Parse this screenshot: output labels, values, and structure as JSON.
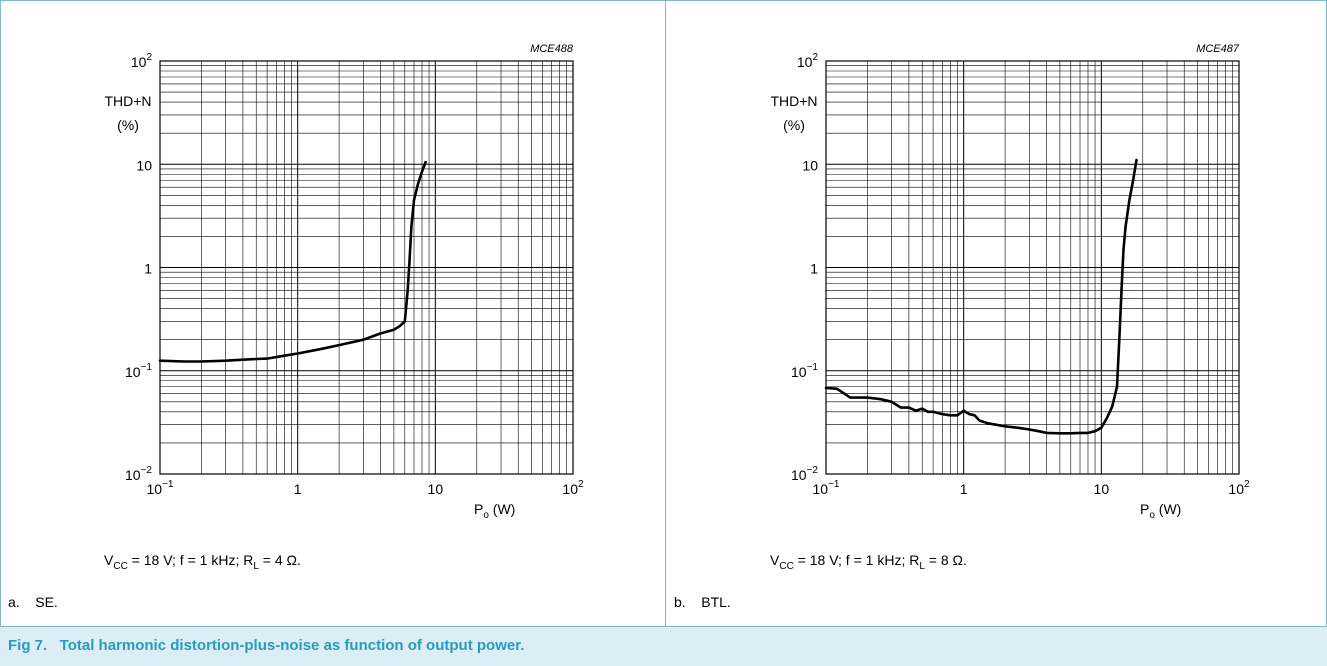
{
  "caption": "Fig 7.   Total harmonic distortion-plus-noise as function of output power.",
  "chart_data": [
    {
      "type": "line",
      "code": "MCE488",
      "ylabel": "THD+N",
      "ylabel_unit": "(%)",
      "xlabel": "P",
      "xlabel_sub": "o",
      "xlabel_unit": " (W)",
      "x_scale": "log",
      "y_scale": "log",
      "xlim": [
        0.1,
        100
      ],
      "ylim": [
        0.01,
        100
      ],
      "x_ticks": [
        {
          "base": "10",
          "exp": "−1"
        },
        {
          "base": "1",
          "exp": ""
        },
        {
          "base": "10",
          "exp": ""
        },
        {
          "base": "10",
          "exp": "2"
        }
      ],
      "y_ticks": [
        {
          "base": "10",
          "exp": "−2"
        },
        {
          "base": "10",
          "exp": "−1"
        },
        {
          "base": "1",
          "exp": ""
        },
        {
          "base": "10",
          "exp": ""
        },
        {
          "base": "10",
          "exp": "2"
        }
      ],
      "grid": true,
      "series": [
        {
          "x": [
            0.1,
            0.15,
            0.2,
            0.3,
            0.4,
            0.5,
            0.6,
            0.8,
            1.0,
            1.5,
            2.0,
            3.0,
            4.0,
            5.0,
            5.5,
            6.0,
            6.3,
            6.5,
            6.7,
            7.0,
            7.5,
            8.0,
            8.5
          ],
          "y": [
            0.125,
            0.123,
            0.123,
            0.125,
            0.128,
            0.13,
            0.131,
            0.14,
            0.147,
            0.163,
            0.177,
            0.2,
            0.23,
            0.25,
            0.27,
            0.3,
            0.6,
            1.2,
            2.5,
            4.5,
            6.5,
            8.5,
            10.5
          ]
        }
      ],
      "conditions": {
        "vcc_label": "V",
        "vcc_sub": "CC",
        "vcc_rest": " = 18 V; f = 1 kHz; R",
        "rl_sub": "L",
        "rl_rest": " = 4 Ω."
      },
      "sub_label": "a.    SE."
    },
    {
      "type": "line",
      "code": "MCE487",
      "ylabel": "THD+N",
      "ylabel_unit": "(%)",
      "xlabel": "P",
      "xlabel_sub": "o",
      "xlabel_unit": " (W)",
      "x_scale": "log",
      "y_scale": "log",
      "xlim": [
        0.1,
        100
      ],
      "ylim": [
        0.01,
        100
      ],
      "x_ticks": [
        {
          "base": "10",
          "exp": "−1"
        },
        {
          "base": "1",
          "exp": ""
        },
        {
          "base": "10",
          "exp": ""
        },
        {
          "base": "10",
          "exp": "2"
        }
      ],
      "y_ticks": [
        {
          "base": "10",
          "exp": "−2"
        },
        {
          "base": "10",
          "exp": "−1"
        },
        {
          "base": "1",
          "exp": ""
        },
        {
          "base": "10",
          "exp": ""
        },
        {
          "base": "10",
          "exp": "2"
        }
      ],
      "grid": true,
      "series": [
        {
          "x": [
            0.1,
            0.12,
            0.15,
            0.2,
            0.25,
            0.3,
            0.35,
            0.4,
            0.45,
            0.5,
            0.55,
            0.6,
            0.7,
            0.8,
            0.9,
            1.0,
            1.1,
            1.2,
            1.3,
            1.5,
            2.0,
            2.5,
            3.0,
            3.5,
            4.0,
            5.0,
            6.0,
            7.0,
            8.0,
            9.0,
            10.0,
            11.0,
            12.0,
            13.0,
            13.5,
            14.0,
            14.5,
            15.0,
            16.0,
            17.0,
            18.0
          ],
          "y": [
            0.068,
            0.067,
            0.055,
            0.055,
            0.053,
            0.05,
            0.044,
            0.044,
            0.041,
            0.043,
            0.04,
            0.04,
            0.038,
            0.037,
            0.037,
            0.041,
            0.038,
            0.037,
            0.033,
            0.031,
            0.029,
            0.028,
            0.027,
            0.026,
            0.025,
            0.0248,
            0.0248,
            0.025,
            0.025,
            0.026,
            0.028,
            0.035,
            0.045,
            0.07,
            0.2,
            0.6,
            1.5,
            2.5,
            4.5,
            7.0,
            11.0
          ]
        }
      ],
      "conditions": {
        "vcc_label": "V",
        "vcc_sub": "CC",
        "vcc_rest": " = 18 V; f = 1 kHz; R",
        "rl_sub": "L",
        "rl_rest": " = 8 Ω."
      },
      "sub_label": "b.    BTL."
    }
  ]
}
